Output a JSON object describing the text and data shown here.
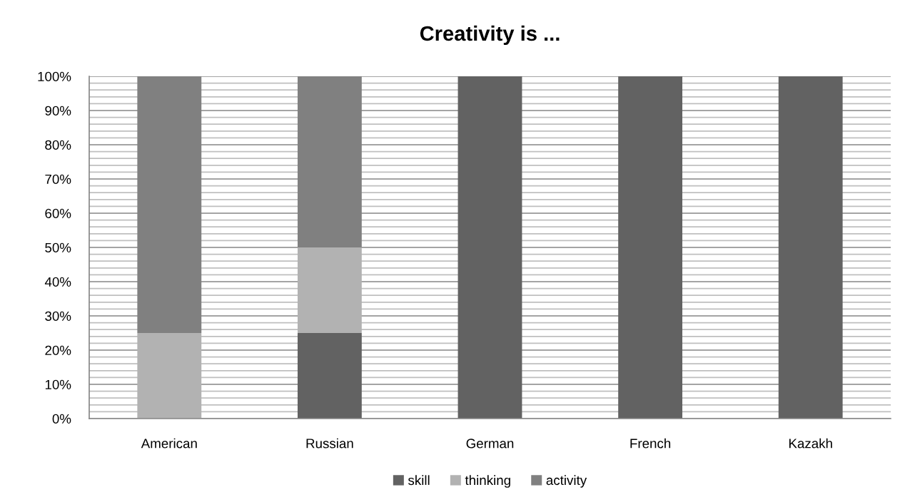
{
  "chart_data": {
    "type": "bar",
    "title": "Creativity is ...",
    "categories": [
      "American",
      "Russian",
      "German",
      "French",
      "Kazakh"
    ],
    "stacked": true,
    "series": [
      {
        "name": "skill",
        "color": "#626262",
        "values": [
          0,
          25,
          100,
          100,
          100
        ]
      },
      {
        "name": "thinking",
        "color": "#b2b2b2",
        "values": [
          25,
          25,
          0,
          0,
          0
        ]
      },
      {
        "name": "activity",
        "color": "#808080",
        "values": [
          75,
          50,
          0,
          0,
          0
        ]
      }
    ],
    "ylim": [
      0,
      100
    ],
    "yticks": [
      {
        "value": 0,
        "label": "0%"
      },
      {
        "value": 2,
        "label": null
      },
      {
        "value": 4,
        "label": null
      },
      {
        "value": 6,
        "label": null
      },
      {
        "value": 8,
        "label": null
      },
      {
        "value": 10,
        "label": "10%"
      },
      {
        "value": 12,
        "label": null
      },
      {
        "value": 14,
        "label": null
      },
      {
        "value": 16,
        "label": null
      },
      {
        "value": 18,
        "label": null
      },
      {
        "value": 20,
        "label": "20%"
      },
      {
        "value": 22,
        "label": null
      },
      {
        "value": 24,
        "label": null
      },
      {
        "value": 26,
        "label": null
      },
      {
        "value": 28,
        "label": null
      },
      {
        "value": 30,
        "label": "30%"
      },
      {
        "value": 32,
        "label": null
      },
      {
        "value": 34,
        "label": null
      },
      {
        "value": 36,
        "label": null
      },
      {
        "value": 38,
        "label": null
      },
      {
        "value": 40,
        "label": "40%"
      },
      {
        "value": 42,
        "label": null
      },
      {
        "value": 44,
        "label": null
      },
      {
        "value": 46,
        "label": null
      },
      {
        "value": 48,
        "label": null
      },
      {
        "value": 50,
        "label": "50%"
      },
      {
        "value": 52,
        "label": null
      },
      {
        "value": 54,
        "label": null
      },
      {
        "value": 56,
        "label": null
      },
      {
        "value": 58,
        "label": null
      },
      {
        "value": 60,
        "label": "60%"
      },
      {
        "value": 62,
        "label": null
      },
      {
        "value": 64,
        "label": null
      },
      {
        "value": 66,
        "label": null
      },
      {
        "value": 68,
        "label": null
      },
      {
        "value": 70,
        "label": "70%"
      },
      {
        "value": 72,
        "label": null
      },
      {
        "value": 74,
        "label": null
      },
      {
        "value": 76,
        "label": null
      },
      {
        "value": 78,
        "label": null
      },
      {
        "value": 80,
        "label": "80%"
      },
      {
        "value": 82,
        "label": null
      },
      {
        "value": 84,
        "label": null
      },
      {
        "value": 86,
        "label": null
      },
      {
        "value": 88,
        "label": null
      },
      {
        "value": 90,
        "label": "90%"
      },
      {
        "value": 92,
        "label": null
      },
      {
        "value": 94,
        "label": null
      },
      {
        "value": 96,
        "label": null
      },
      {
        "value": 98,
        "label": null
      },
      {
        "value": 100,
        "label": "100%"
      }
    ],
    "grid": "y",
    "legend": "bottom"
  }
}
